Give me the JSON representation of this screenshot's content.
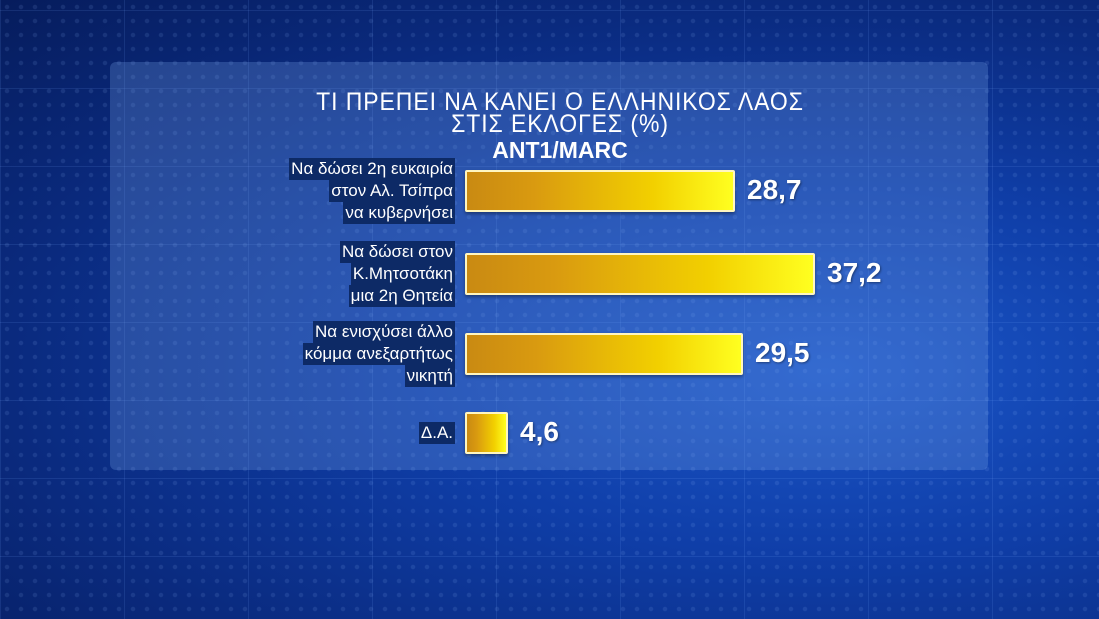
{
  "chart_data": {
    "type": "bar",
    "orientation": "horizontal",
    "title": "ΤΙ ΠΡΕΠΕΙ ΝΑ ΚΑΝΕΙ Ο ΕΛΛΗΝΙΚΟΣ ΛΑΟΣ",
    "title_line2": "ΣΤΙΣ ΕΚΛΟΓΕΣ (%)",
    "subtitle": "ANT1/MARC",
    "categories": [
      [
        "Να δώσει 2η ευκαιρία",
        "στον Αλ. Τσίπρα",
        "να κυβερνήσει"
      ],
      [
        "Να δώσει στον",
        "Κ.Μητσοτάκη",
        "μια 2η Θητεία"
      ],
      [
        "Να ενισχύσει άλλο",
        "κόμμα ανεξαρτήτως",
        "νικητή"
      ],
      [
        "Δ.Α."
      ]
    ],
    "values": [
      28.7,
      37.2,
      29.5,
      4.6
    ],
    "value_labels": [
      "28,7",
      "37,2",
      "29,5",
      "4,6"
    ],
    "bar_color": "#f2d000",
    "grid": false
  }
}
